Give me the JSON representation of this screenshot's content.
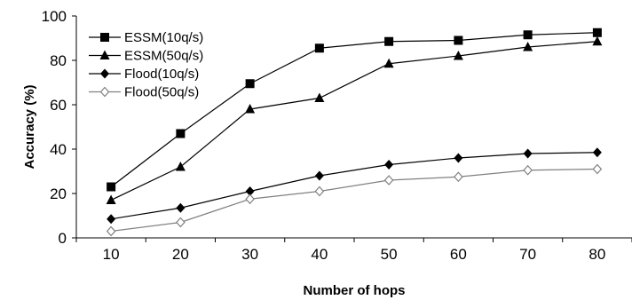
{
  "chart_data": {
    "type": "line",
    "xlabel": "Number of hops",
    "ylabel": "Accuracy (%)",
    "x": [
      10,
      20,
      30,
      40,
      50,
      60,
      70,
      80
    ],
    "ylim": [
      0,
      100
    ],
    "yticks": [
      0,
      20,
      40,
      60,
      80,
      100
    ],
    "grid": false,
    "legend_position": "top-left",
    "series": [
      {
        "name": "ESSM(10q/s)",
        "marker": "square",
        "color": "#000000",
        "values": [
          23,
          47,
          69.5,
          85.5,
          88.5,
          89,
          91.5,
          92.5
        ]
      },
      {
        "name": "ESSM(50q/s)",
        "marker": "triangle",
        "color": "#000000",
        "values": [
          17,
          32,
          58,
          63,
          78.5,
          82,
          86,
          88.5
        ]
      },
      {
        "name": "Flood(10q/s)",
        "marker": "diamond",
        "color": "#000000",
        "values": [
          8.5,
          13.5,
          21,
          28,
          33,
          36,
          38,
          38.5
        ]
      },
      {
        "name": "Flood(50q/s)",
        "marker": "diamond-open",
        "color": "#808080",
        "values": [
          3,
          7,
          17.5,
          21,
          26,
          27.5,
          30.5,
          31
        ]
      }
    ]
  }
}
